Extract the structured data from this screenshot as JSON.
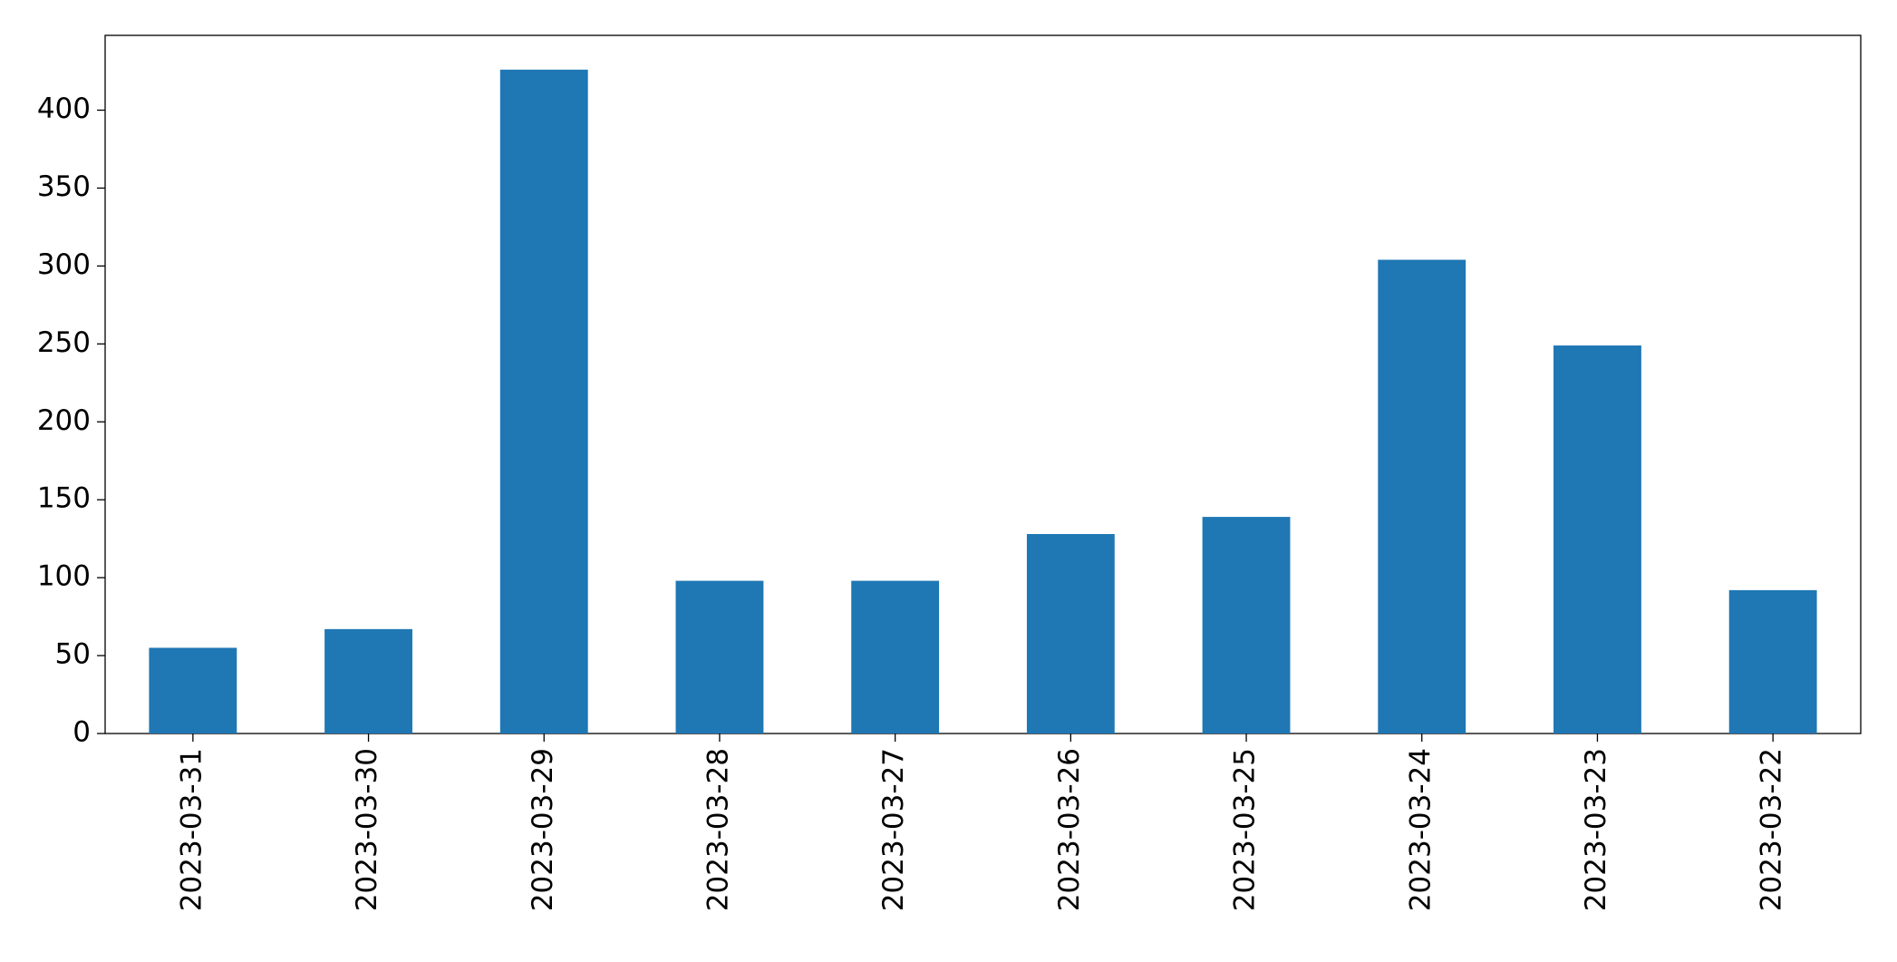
{
  "chart_data": {
    "type": "bar",
    "categories": [
      "2023-03-31",
      "2023-03-30",
      "2023-03-29",
      "2023-03-28",
      "2023-03-27",
      "2023-03-26",
      "2023-03-25",
      "2023-03-24",
      "2023-03-23",
      "2023-03-22"
    ],
    "values": [
      55,
      67,
      426,
      98,
      98,
      128,
      139,
      304,
      249,
      92
    ],
    "color": "#1f77b4",
    "ylim": [
      0,
      448
    ],
    "yticks": [
      0,
      50,
      100,
      150,
      200,
      250,
      300,
      350,
      400
    ],
    "grid": false
  }
}
